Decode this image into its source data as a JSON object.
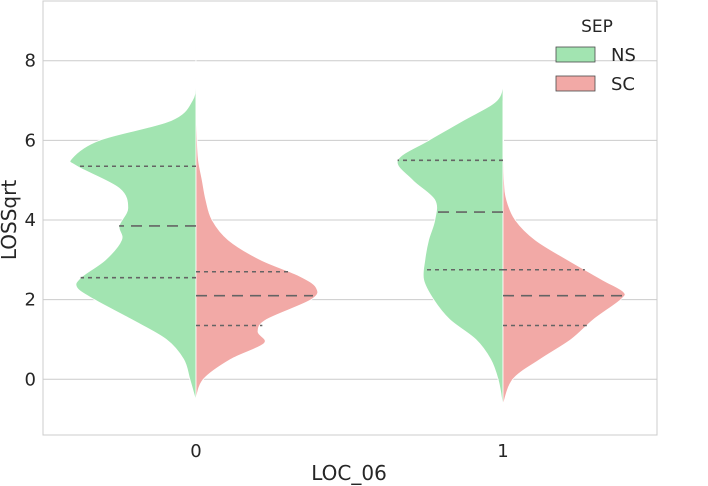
{
  "chart_data": {
    "type": "violin",
    "split": true,
    "xlabel": "LOC_06",
    "ylabel": "LOSSqrt",
    "categories": [
      "0",
      "1"
    ],
    "ylim": [
      -1.4,
      9.5
    ],
    "yticks": [
      0,
      2,
      4,
      6,
      8
    ],
    "grid": "horizontal",
    "legend": {
      "title": "SEP",
      "position": "top-right"
    },
    "colors": {
      "NS": "#a2e4b1",
      "SC": "#f2a9a6",
      "edge": "#ffffff",
      "quartile": "#646464"
    },
    "series": [
      {
        "name": "NS",
        "side": "left",
        "groups": [
          {
            "category": "0",
            "range": [
              -0.55,
              9.0
            ],
            "quartiles": [
              2.55,
              3.85,
              5.35
            ],
            "profile": [
              [
                -0.55,
                0.0
              ],
              [
                0.0,
                0.05
              ],
              [
                0.5,
                0.1
              ],
              [
                1.0,
                0.24
              ],
              [
                1.5,
                0.52
              ],
              [
                2.0,
                0.82
              ],
              [
                2.3,
                0.96
              ],
              [
                2.55,
                0.93
              ],
              [
                3.0,
                0.73
              ],
              [
                3.5,
                0.6
              ],
              [
                3.85,
                0.62
              ],
              [
                4.3,
                0.55
              ],
              [
                4.8,
                0.62
              ],
              [
                5.35,
                0.96
              ],
              [
                5.55,
                1.0
              ],
              [
                6.0,
                0.78
              ],
              [
                6.5,
                0.2
              ],
              [
                7.0,
                0.03
              ],
              [
                7.5,
                0.005
              ],
              [
                8.5,
                0.0
              ],
              [
                9.0,
                0.0
              ]
            ]
          },
          {
            "category": "1",
            "range": [
              -0.9,
              7.85
            ],
            "quartiles": [
              2.75,
              4.2,
              5.5
            ],
            "profile": [
              [
                -0.9,
                0.0
              ],
              [
                -0.5,
                0.01
              ],
              [
                0.0,
                0.04
              ],
              [
                0.5,
                0.1
              ],
              [
                1.0,
                0.22
              ],
              [
                1.5,
                0.43
              ],
              [
                2.0,
                0.56
              ],
              [
                2.5,
                0.64
              ],
              [
                3.0,
                0.63
              ],
              [
                3.5,
                0.6
              ],
              [
                4.0,
                0.55
              ],
              [
                4.5,
                0.55
              ],
              [
                5.0,
                0.73
              ],
              [
                5.5,
                0.85
              ],
              [
                6.0,
                0.6
              ],
              [
                6.5,
                0.32
              ],
              [
                7.0,
                0.05
              ],
              [
                7.5,
                0.0
              ],
              [
                7.85,
                0.0
              ]
            ]
          }
        ]
      },
      {
        "name": "SC",
        "side": "right",
        "groups": [
          {
            "category": "0",
            "range": [
              -0.5,
              7.2
            ],
            "quartiles": [
              1.35,
              2.1,
              2.7
            ],
            "profile": [
              [
                -0.5,
                0.0
              ],
              [
                0.0,
                0.06
              ],
              [
                0.5,
                0.28
              ],
              [
                0.9,
                0.55
              ],
              [
                1.2,
                0.5
              ],
              [
                1.5,
                0.57
              ],
              [
                2.0,
                0.93
              ],
              [
                2.3,
                0.97
              ],
              [
                2.6,
                0.83
              ],
              [
                3.0,
                0.52
              ],
              [
                3.5,
                0.26
              ],
              [
                4.0,
                0.13
              ],
              [
                4.5,
                0.08
              ],
              [
                5.0,
                0.05
              ],
              [
                5.5,
                0.02
              ],
              [
                6.0,
                0.01
              ],
              [
                7.2,
                0.0
              ]
            ]
          },
          {
            "category": "1",
            "range": [
              -0.65,
              7.0
            ],
            "quartiles": [
              1.35,
              2.1,
              2.75
            ],
            "profile": [
              [
                -0.65,
                0.0
              ],
              [
                0.0,
                0.08
              ],
              [
                0.5,
                0.3
              ],
              [
                1.0,
                0.55
              ],
              [
                1.5,
                0.73
              ],
              [
                2.0,
                0.95
              ],
              [
                2.2,
                0.97
              ],
              [
                2.5,
                0.8
              ],
              [
                3.0,
                0.52
              ],
              [
                3.5,
                0.26
              ],
              [
                4.0,
                0.1
              ],
              [
                4.5,
                0.03
              ],
              [
                5.0,
                0.01
              ],
              [
                6.0,
                0.005
              ],
              [
                7.0,
                0.0
              ]
            ]
          }
        ]
      }
    ]
  }
}
